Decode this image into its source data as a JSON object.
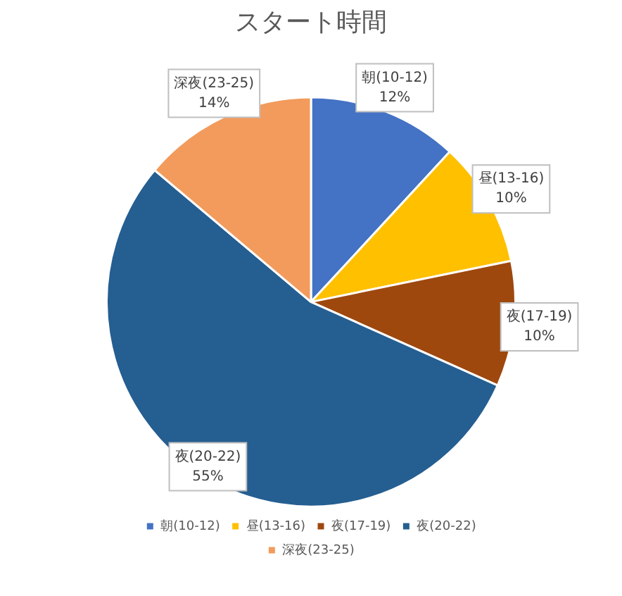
{
  "chart_data": {
    "type": "pie",
    "title": "スタート時間",
    "categories": [
      "朝(10-12)",
      "昼(13-16)",
      "夜(17-19)",
      "夜(20-22)",
      "深夜(23-25)"
    ],
    "values": [
      12,
      10,
      10,
      55,
      14
    ],
    "value_labels": [
      "12%",
      "10%",
      "10%",
      "55%",
      "14%"
    ],
    "colors": [
      "#4472c4",
      "#ffc000",
      "#9e480e",
      "#255e91",
      "#f29b5c"
    ],
    "legend": "bottom"
  }
}
